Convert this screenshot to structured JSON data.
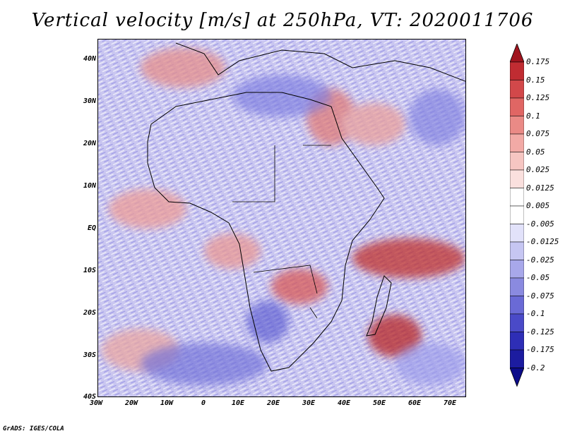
{
  "title": "Vertical velocity [m/s] at 250hPa, VT: 2020011706",
  "credit": "GrADS: IGES/COLA",
  "latitude_labels": [
    "40N",
    "30N",
    "20N",
    "10N",
    "EQ",
    "10S",
    "20S",
    "30S",
    "40S"
  ],
  "longitude_labels": [
    "30W",
    "20W",
    "10W",
    "0",
    "10E",
    "20E",
    "30E",
    "40E",
    "50E",
    "60E",
    "70E"
  ],
  "colorbar": {
    "levels": [
      "0.175",
      "0.15",
      "0.125",
      "0.1",
      "0.075",
      "0.05",
      "0.025",
      "0.0125",
      "0.005",
      "-0.005",
      "-0.0125",
      "-0.025",
      "-0.05",
      "-0.075",
      "-0.1",
      "-0.125",
      "-0.175",
      "-0.2"
    ],
    "colors": [
      "#a0141e",
      "#c02c32",
      "#d2484a",
      "#e06664",
      "#ea8a86",
      "#f2aaa6",
      "#f6c6c2",
      "#fae0de",
      "#ffffff",
      "#ffffff",
      "#e2e2fa",
      "#c6c6f2",
      "#a8a8ea",
      "#8a8ae0",
      "#6a6ad6",
      "#4a4ac8",
      "#2e2eb6",
      "#1c1ca0",
      "#0c0c8a"
    ]
  },
  "background_colors": {
    "positive": "#e87a78",
    "negative": "#8c8ce4",
    "neutral": "#f4f0f8"
  }
}
